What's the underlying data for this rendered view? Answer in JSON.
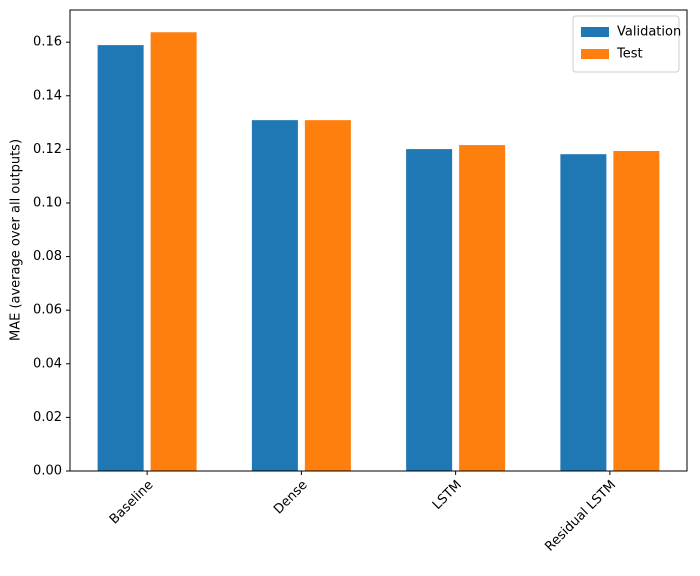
{
  "chart_data": {
    "type": "bar",
    "ylabel": "MAE (average over all outputs)",
    "categories": [
      "Baseline",
      "Dense",
      "LSTM",
      "Residual LSTM"
    ],
    "series": [
      {
        "name": "Validation",
        "color": "#1f77b4",
        "values": [
          0.1589,
          0.1309,
          0.1201,
          0.1182
        ]
      },
      {
        "name": "Test",
        "color": "#ff7f0e",
        "values": [
          0.1637,
          0.1309,
          0.1216,
          0.1194
        ]
      }
    ],
    "ylim": [
      0,
      0.172
    ],
    "yticks": [
      {
        "value": 0,
        "label": "0.00"
      },
      {
        "value": 0.02,
        "label": "0.02"
      },
      {
        "value": 0.04,
        "label": "0.04"
      },
      {
        "value": 0.06,
        "label": "0.06"
      },
      {
        "value": 0.08,
        "label": "0.08"
      },
      {
        "value": 0.1,
        "label": "0.10"
      },
      {
        "value": 0.12,
        "label": "0.12"
      },
      {
        "value": 0.14,
        "label": "0.14"
      },
      {
        "value": 0.16,
        "label": "0.16"
      }
    ],
    "legend": "upper right"
  }
}
